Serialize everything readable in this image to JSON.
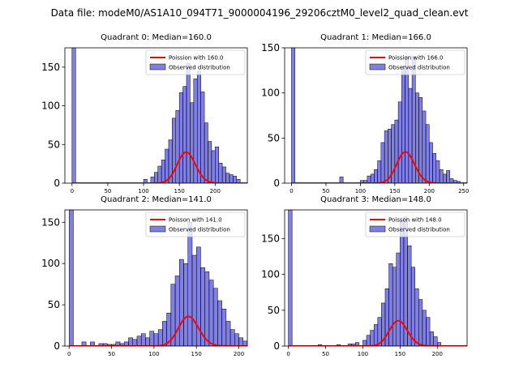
{
  "figure": {
    "suptitle": "Data file: modeM0/AS1A10_094T71_9000004196_29206cztM0_level2_quad_clean.evt"
  },
  "chart_data": [
    {
      "type": "bar",
      "title": "Quadrant 0: Median=160.0",
      "xlim": [
        -10,
        245
      ],
      "ylim": [
        0,
        175
      ],
      "xticks": [
        0,
        50,
        100,
        150,
        200
      ],
      "yticks": [
        0,
        50,
        100,
        150
      ],
      "bin_width": 5,
      "hist_x": [
        0,
        100,
        110,
        115,
        120,
        125,
        130,
        135,
        140,
        145,
        150,
        155,
        160,
        165,
        170,
        175,
        180,
        185,
        190,
        195,
        200,
        205,
        210,
        215,
        220,
        225,
        230
      ],
      "hist_y": [
        175,
        5,
        8,
        14,
        22,
        30,
        44,
        56,
        84,
        94,
        117,
        125,
        155,
        104,
        135,
        145,
        118,
        78,
        54,
        42,
        47,
        26,
        21,
        13,
        11,
        9,
        5
      ],
      "poisson_mean": 160.0,
      "poisson_scale": 1270,
      "legend": [
        "Poission with 160.0",
        "Observed distribution"
      ]
    },
    {
      "type": "bar",
      "title": "Quadrant 1: Median=166.0",
      "xlim": [
        -10,
        255
      ],
      "ylim": [
        0,
        150
      ],
      "xticks": [
        0,
        50,
        100,
        150,
        200,
        250
      ],
      "yticks": [
        0,
        50,
        100,
        150
      ],
      "bin_width": 5,
      "hist_x": [
        0,
        70,
        100,
        105,
        110,
        115,
        120,
        125,
        130,
        135,
        140,
        145,
        150,
        155,
        160,
        165,
        170,
        175,
        180,
        185,
        190,
        195,
        200,
        205,
        210,
        215,
        220,
        225,
        230,
        235,
        240
      ],
      "hist_y": [
        150,
        7,
        3,
        3,
        8,
        10,
        15,
        25,
        45,
        58,
        60,
        65,
        70,
        90,
        130,
        140,
        105,
        140,
        100,
        95,
        80,
        65,
        45,
        33,
        25,
        15,
        10,
        14,
        5,
        3,
        2
      ],
      "poisson_mean": 166.0,
      "poisson_scale": 1120,
      "legend": [
        "Poission with 166.0",
        "Observed distribution"
      ]
    },
    {
      "type": "bar",
      "title": "Quadrant 2: Median=141.0",
      "xlim": [
        -5,
        210
      ],
      "ylim": [
        0,
        165
      ],
      "xticks": [
        0,
        50,
        100,
        150,
        200
      ],
      "yticks": [
        0,
        50,
        100,
        150
      ],
      "bin_width": 5,
      "hist_x": [
        0,
        15,
        25,
        35,
        40,
        45,
        50,
        55,
        60,
        65,
        70,
        75,
        80,
        85,
        90,
        95,
        100,
        105,
        110,
        115,
        120,
        125,
        130,
        135,
        140,
        145,
        150,
        155,
        160,
        165,
        170,
        175,
        180,
        185,
        190,
        195,
        200,
        205
      ],
      "hist_y": [
        165,
        5,
        5,
        3,
        3,
        2,
        2,
        5,
        3,
        5,
        10,
        8,
        12,
        15,
        10,
        18,
        15,
        20,
        30,
        40,
        75,
        85,
        105,
        100,
        150,
        110,
        120,
        95,
        90,
        80,
        70,
        55,
        45,
        30,
        20,
        15,
        10,
        6
      ],
      "poisson_mean": 141.0,
      "poisson_scale": 1070,
      "legend": [
        "Poisson with 141.0",
        "Observed distribution"
      ]
    },
    {
      "type": "bar",
      "title": "Quadrant 3: Median=148.0",
      "xlim": [
        -5,
        240
      ],
      "ylim": [
        0,
        190
      ],
      "xticks": [
        0,
        50,
        100,
        150,
        200
      ],
      "yticks": [
        0,
        50,
        100,
        150
      ],
      "bin_width": 5,
      "hist_x": [
        0,
        40,
        65,
        80,
        85,
        90,
        100,
        105,
        110,
        115,
        120,
        125,
        130,
        135,
        140,
        145,
        150,
        155,
        160,
        165,
        170,
        175,
        180,
        185,
        190,
        195,
        200
      ],
      "hist_y": [
        190,
        2,
        2,
        3,
        3,
        5,
        8,
        15,
        22,
        30,
        40,
        60,
        80,
        115,
        110,
        130,
        175,
        180,
        140,
        110,
        80,
        65,
        50,
        40,
        20,
        13,
        5
      ],
      "poisson_mean": 148.0,
      "poisson_scale": 1080,
      "legend": [
        "Poisson with 148.0",
        "Observed distribution"
      ]
    }
  ]
}
